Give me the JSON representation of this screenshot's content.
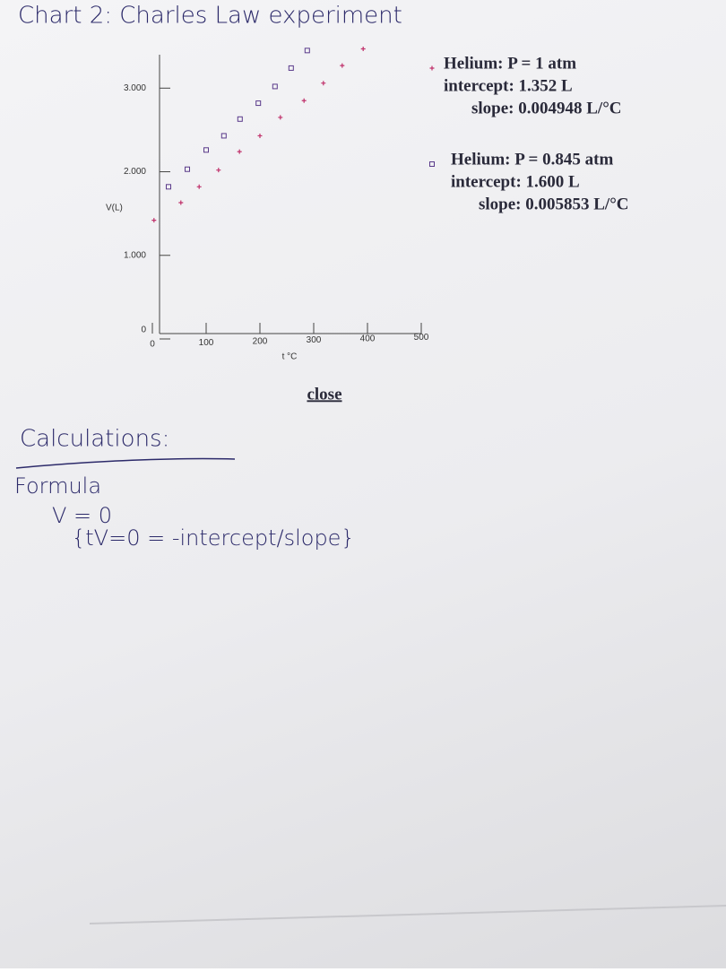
{
  "chart_data": {
    "type": "scatter",
    "title": "Chart 2: Charles Law experiment",
    "x_label": "t °C",
    "y_label": "V(L)",
    "xlim": [
      0,
      500
    ],
    "xticks": [
      0,
      100,
      200,
      300,
      400,
      500
    ],
    "ylim": [
      0,
      3.4
    ],
    "yticks": [
      0,
      {
        "value": 1,
        "label": "1.000"
      },
      {
        "value": 2,
        "label": "2.000"
      },
      {
        "value": 3,
        "label": "3.000"
      }
    ],
    "series": [
      {
        "name": "Helium: P = 1 atm",
        "marker": "plus",
        "color": "#c0306a",
        "x": [
          3,
          53,
          87,
          123,
          162,
          200,
          238,
          282,
          318,
          353,
          392
        ],
        "values": [
          1.42,
          1.63,
          1.82,
          2.02,
          2.24,
          2.43,
          2.65,
          2.85,
          3.06,
          3.27,
          3.47
        ],
        "intercept": "intercept: 1.352 L",
        "slope": "slope: 0.004948 L/°C"
      },
      {
        "name": "Helium: P = 0.845 atm",
        "marker": "square",
        "color": "#5a3a8a",
        "x": [
          30,
          65,
          100,
          133,
          163,
          197,
          228,
          258,
          288
        ],
        "values": [
          1.82,
          2.03,
          2.26,
          2.43,
          2.63,
          2.82,
          3.02,
          3.24,
          3.45
        ],
        "intercept": "intercept: 1.600 L",
        "slope": "slope: 0.005853 L/°C"
      }
    ]
  },
  "close_label": "close",
  "notes": {
    "heading": "Calculations:",
    "formula_label": "Formula",
    "condition": "V = 0",
    "formula": "{tV=0 = -intercept/slope}"
  }
}
